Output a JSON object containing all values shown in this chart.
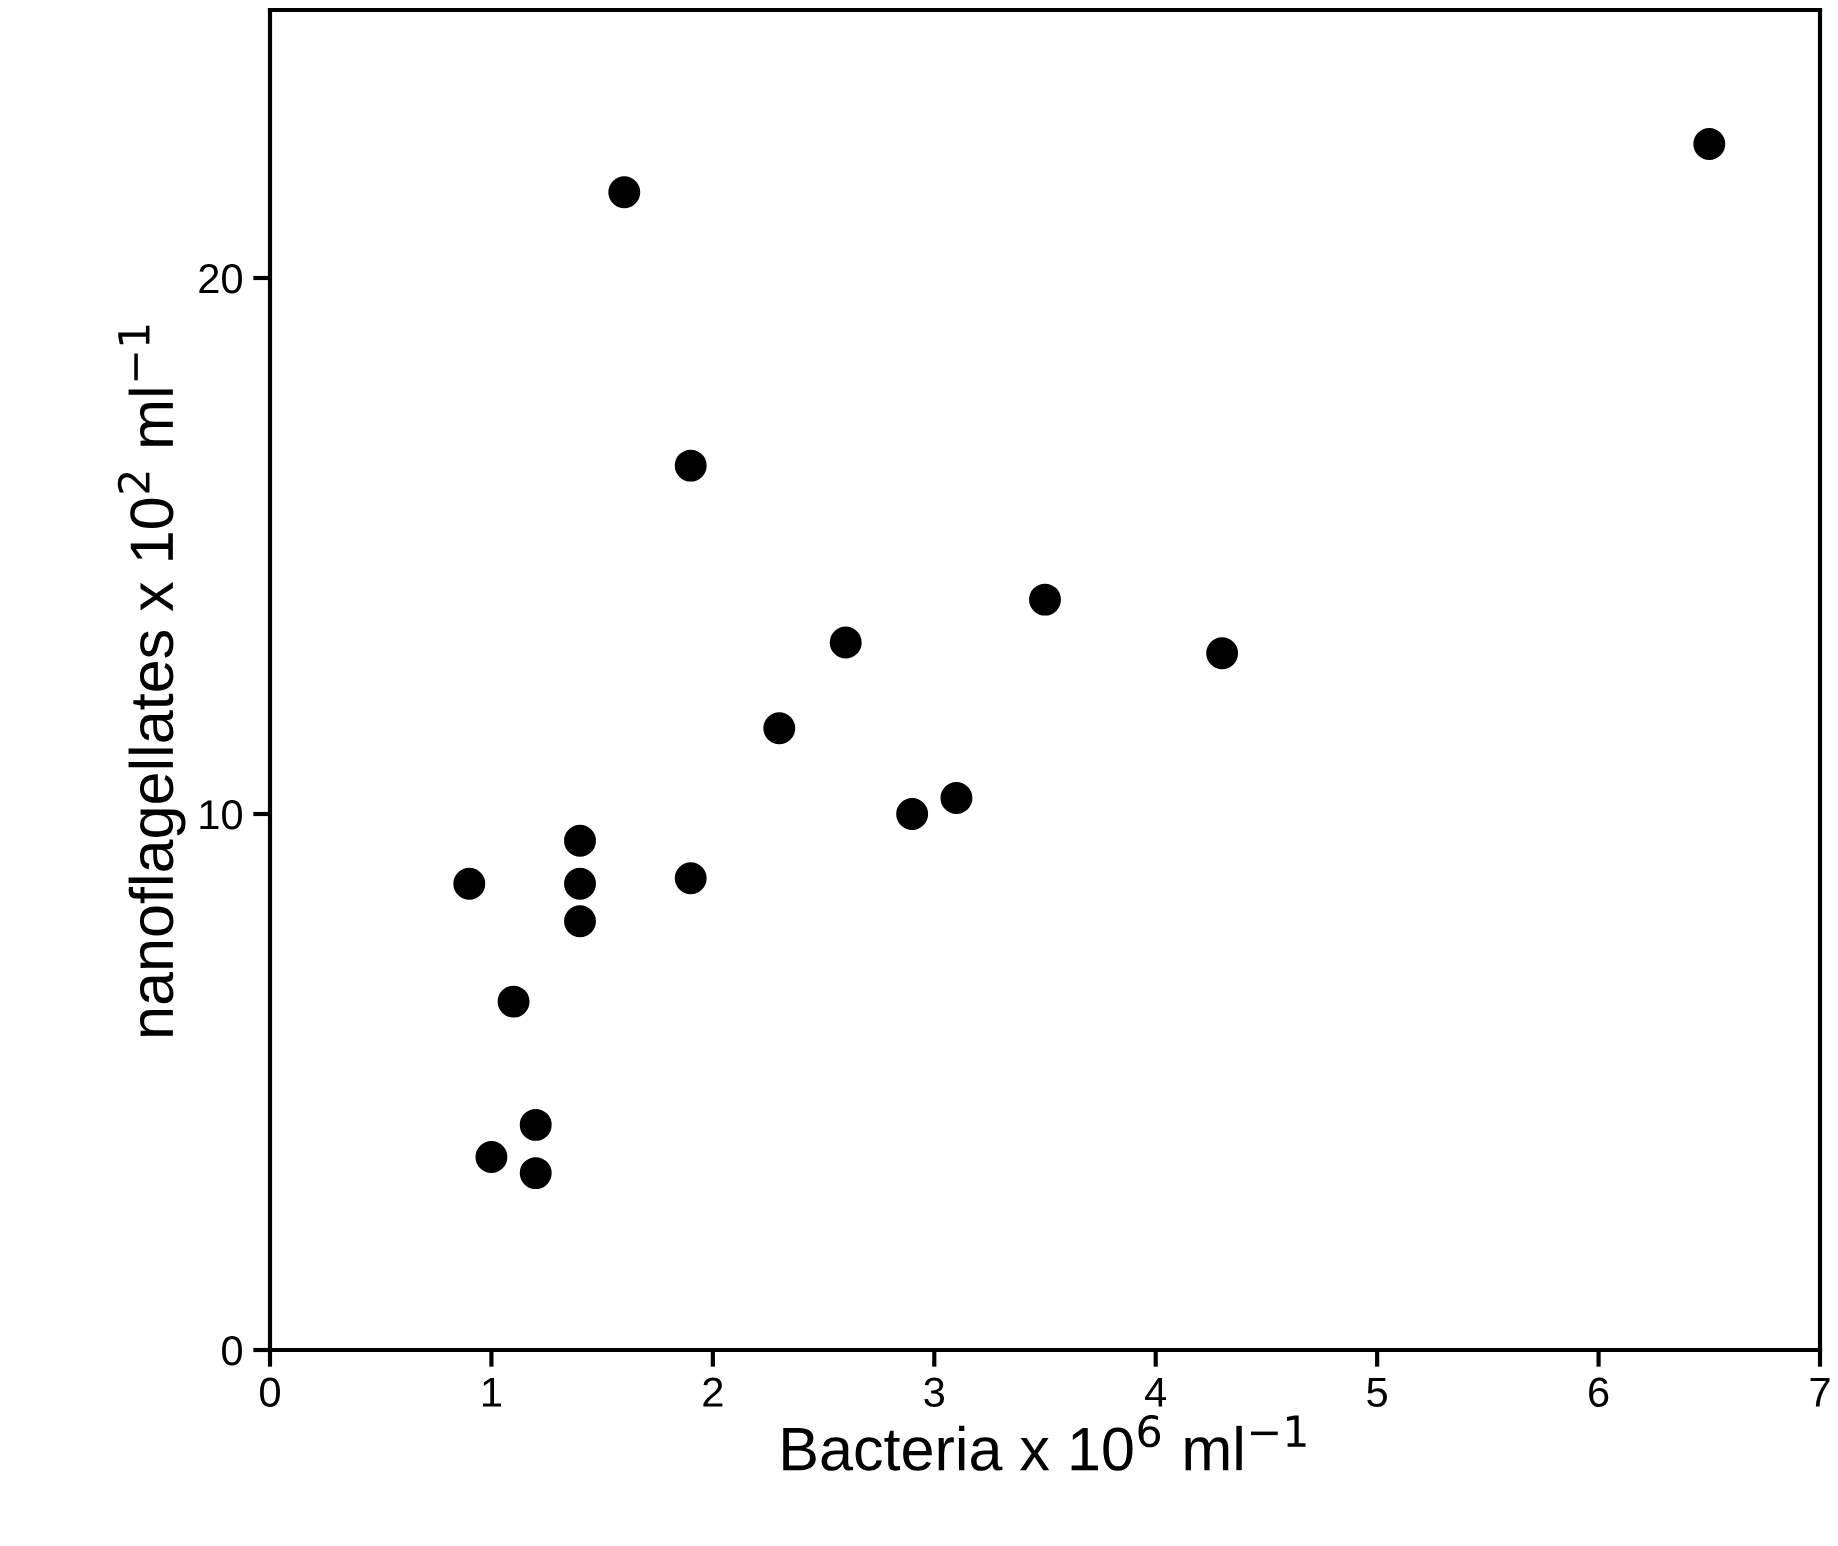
{
  "chart_data": {
    "type": "scatter",
    "xlabel": "Bacteria x 10$^{6}$ ml$^{−1}$",
    "ylabel": "nanoflagellates x 10$^{2}$ ml$^{−1}$",
    "x": [
      6.5,
      1.6,
      1.9,
      3.5,
      2.6,
      4.3,
      2.3,
      3.1,
      2.9,
      1.4,
      0.9,
      1.4,
      1.9,
      1.4,
      1.1,
      1.2,
      1.0,
      1.2
    ],
    "values": [
      22.5,
      21.6,
      16.5,
      14.0,
      13.2,
      13.0,
      11.6,
      10.3,
      10.0,
      9.5,
      8.7,
      8.7,
      8.8,
      8.0,
      6.5,
      4.2,
      3.6,
      3.3
    ],
    "color": "#000000",
    "marker": "circle",
    "xlim": [
      0,
      7
    ],
    "ylim": [
      0,
      25
    ],
    "xticks": [
      0,
      1,
      2,
      3,
      4,
      5,
      6,
      7
    ],
    "yticks": [
      0,
      10,
      20
    ],
    "grid": false,
    "legend": false
  }
}
